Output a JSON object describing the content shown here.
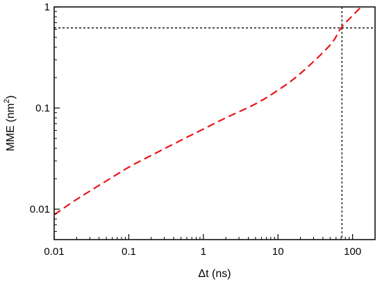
{
  "chart_data": {
    "type": "line",
    "xscale": "log",
    "yscale": "log",
    "xlim": [
      0.01,
      200
    ],
    "ylim": [
      0.005,
      1
    ],
    "xlabel": "Δt (ns)",
    "ylabel_base": "MME (nm",
    "ylabel_sup": "2",
    "ylabel_end": ")",
    "xticks": [
      {
        "value": 0.01,
        "label": "0.01"
      },
      {
        "value": 0.1,
        "label": "0.1"
      },
      {
        "value": 1,
        "label": "1"
      },
      {
        "value": 10,
        "label": "10"
      },
      {
        "value": 100,
        "label": "100"
      }
    ],
    "yticks": [
      {
        "value": 0.01,
        "label": "0.01"
      },
      {
        "value": 0.1,
        "label": "0.1"
      },
      {
        "value": 1,
        "label": "1"
      }
    ],
    "grid": false,
    "series": [
      {
        "color": "#e8141a",
        "style": "dashed",
        "x": [
          0.01,
          0.02,
          0.05,
          0.1,
          0.2,
          0.5,
          1,
          2,
          5,
          10,
          20,
          50,
          70,
          100,
          130
        ],
        "y": [
          0.0088,
          0.0125,
          0.019,
          0.026,
          0.034,
          0.048,
          0.062,
          0.08,
          0.11,
          0.15,
          0.22,
          0.42,
          0.62,
          0.82,
          1.0
        ]
      }
    ],
    "reference_lines": [
      {
        "orientation": "horizontal",
        "value": 0.62,
        "style": "dotted",
        "color": "#000000"
      },
      {
        "orientation": "vertical",
        "value": 72,
        "style": "dotted",
        "color": "#000000"
      }
    ]
  }
}
